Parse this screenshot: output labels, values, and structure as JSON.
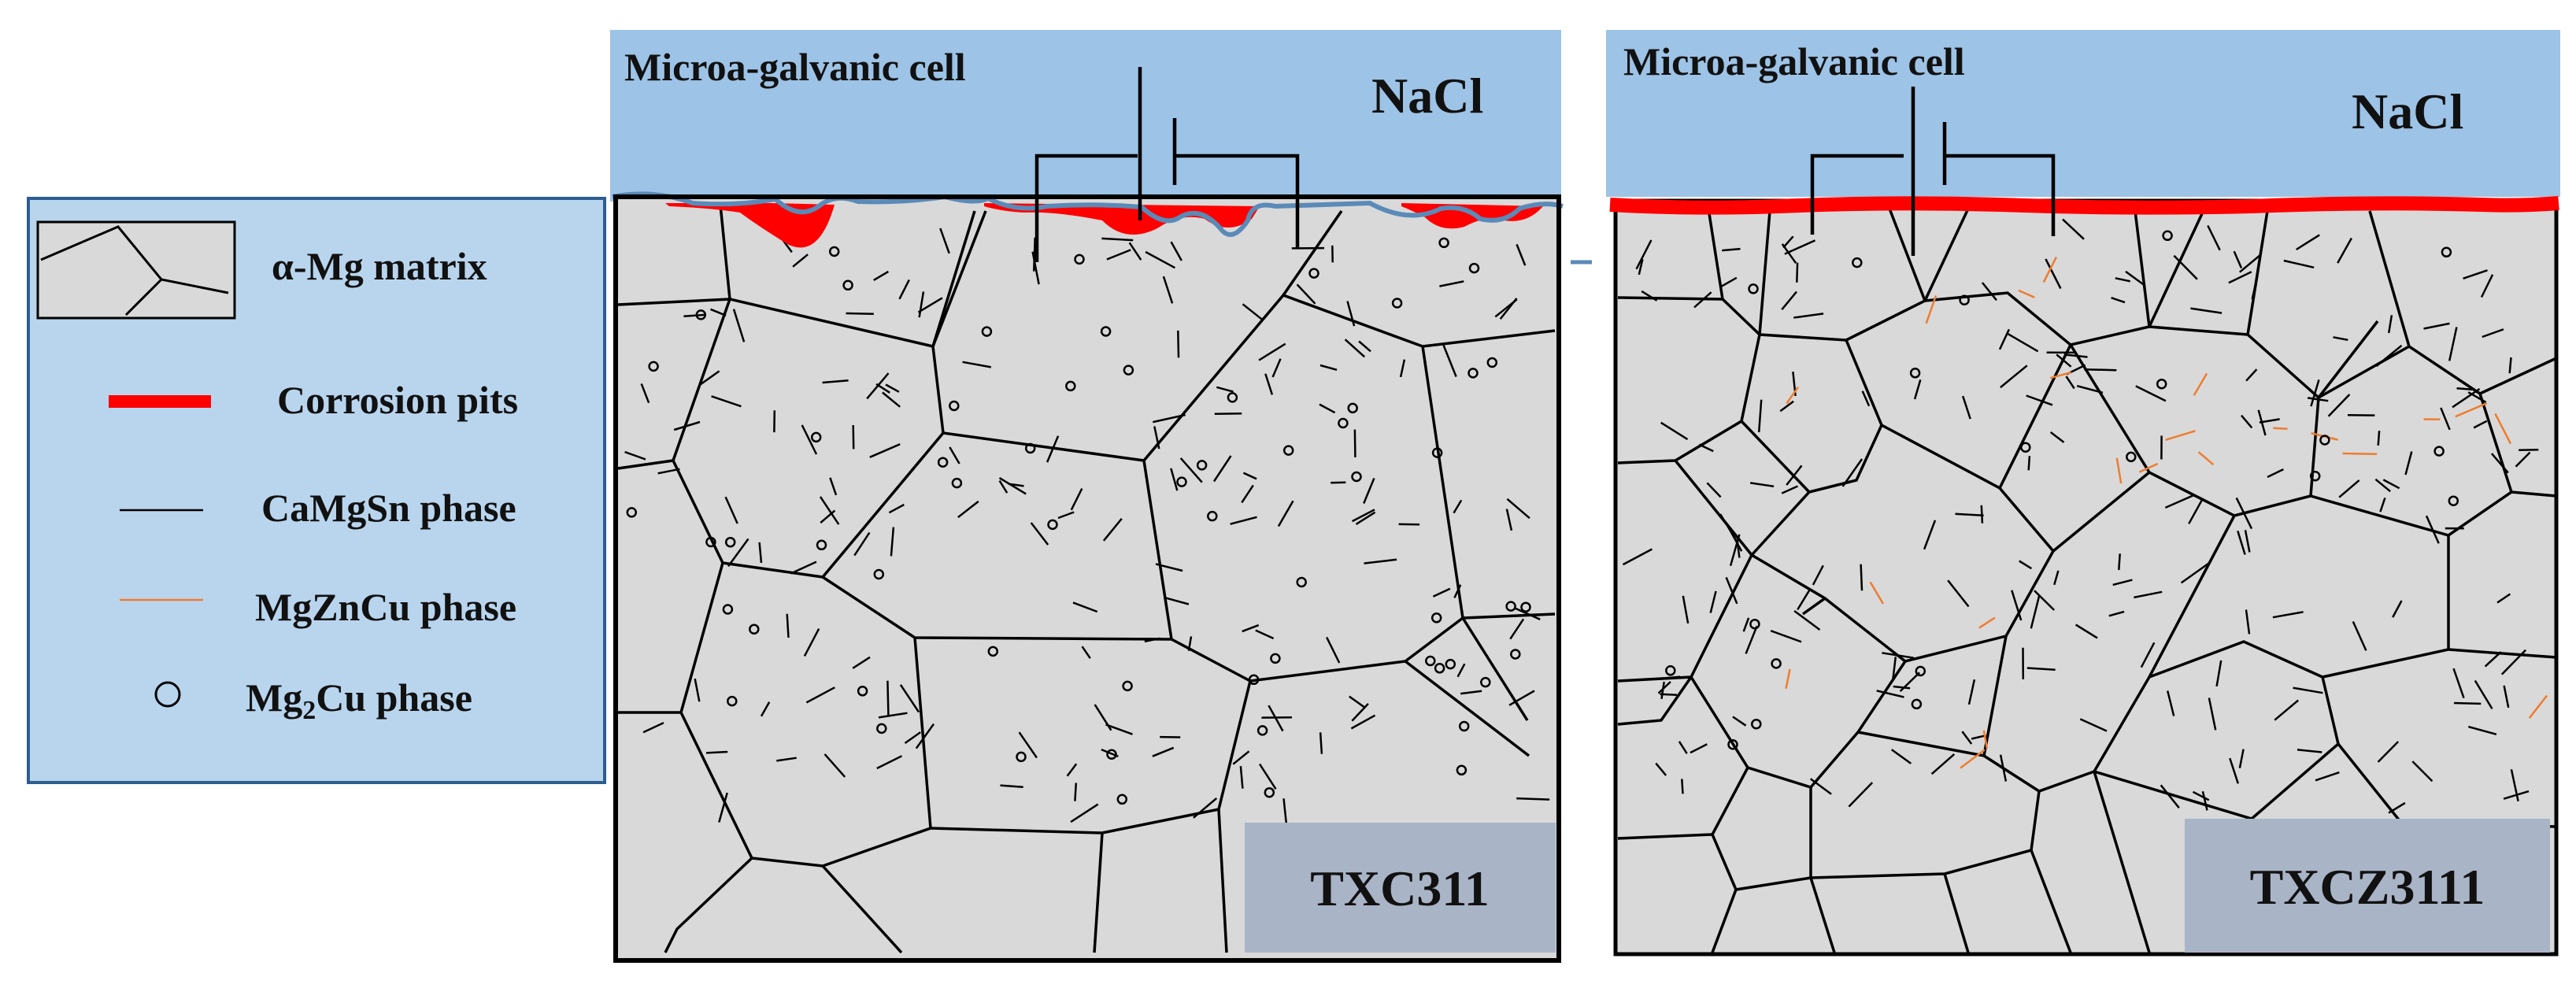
{
  "legend": {
    "matrix_label": "α-Mg matrix",
    "pits_label": "Corrosion pits",
    "camgsn_label": "CaMgSn phase",
    "mgzncu_label": "MgZnCu phase",
    "mg2cu_prefix": "Mg",
    "mg2cu_sub": "2",
    "mg2cu_suffix": "Cu phase"
  },
  "left_panel": {
    "cell_label": "Microa-galvanic cell",
    "solution_label": "NaCl",
    "sample_label": "TXC311"
  },
  "right_panel": {
    "cell_label": "Microa-galvanic cell",
    "solution_label": "NaCl",
    "sample_label": "TXCZ3111"
  },
  "colors": {
    "solution": "#9dc3e6",
    "grain": "#d9d9d9",
    "legend_bg": "#b9d5ee",
    "label_box": "#a9b4c7",
    "pit": "#ff0000",
    "camgsn": "#000000",
    "mgzncu": "#ed7d31"
  }
}
